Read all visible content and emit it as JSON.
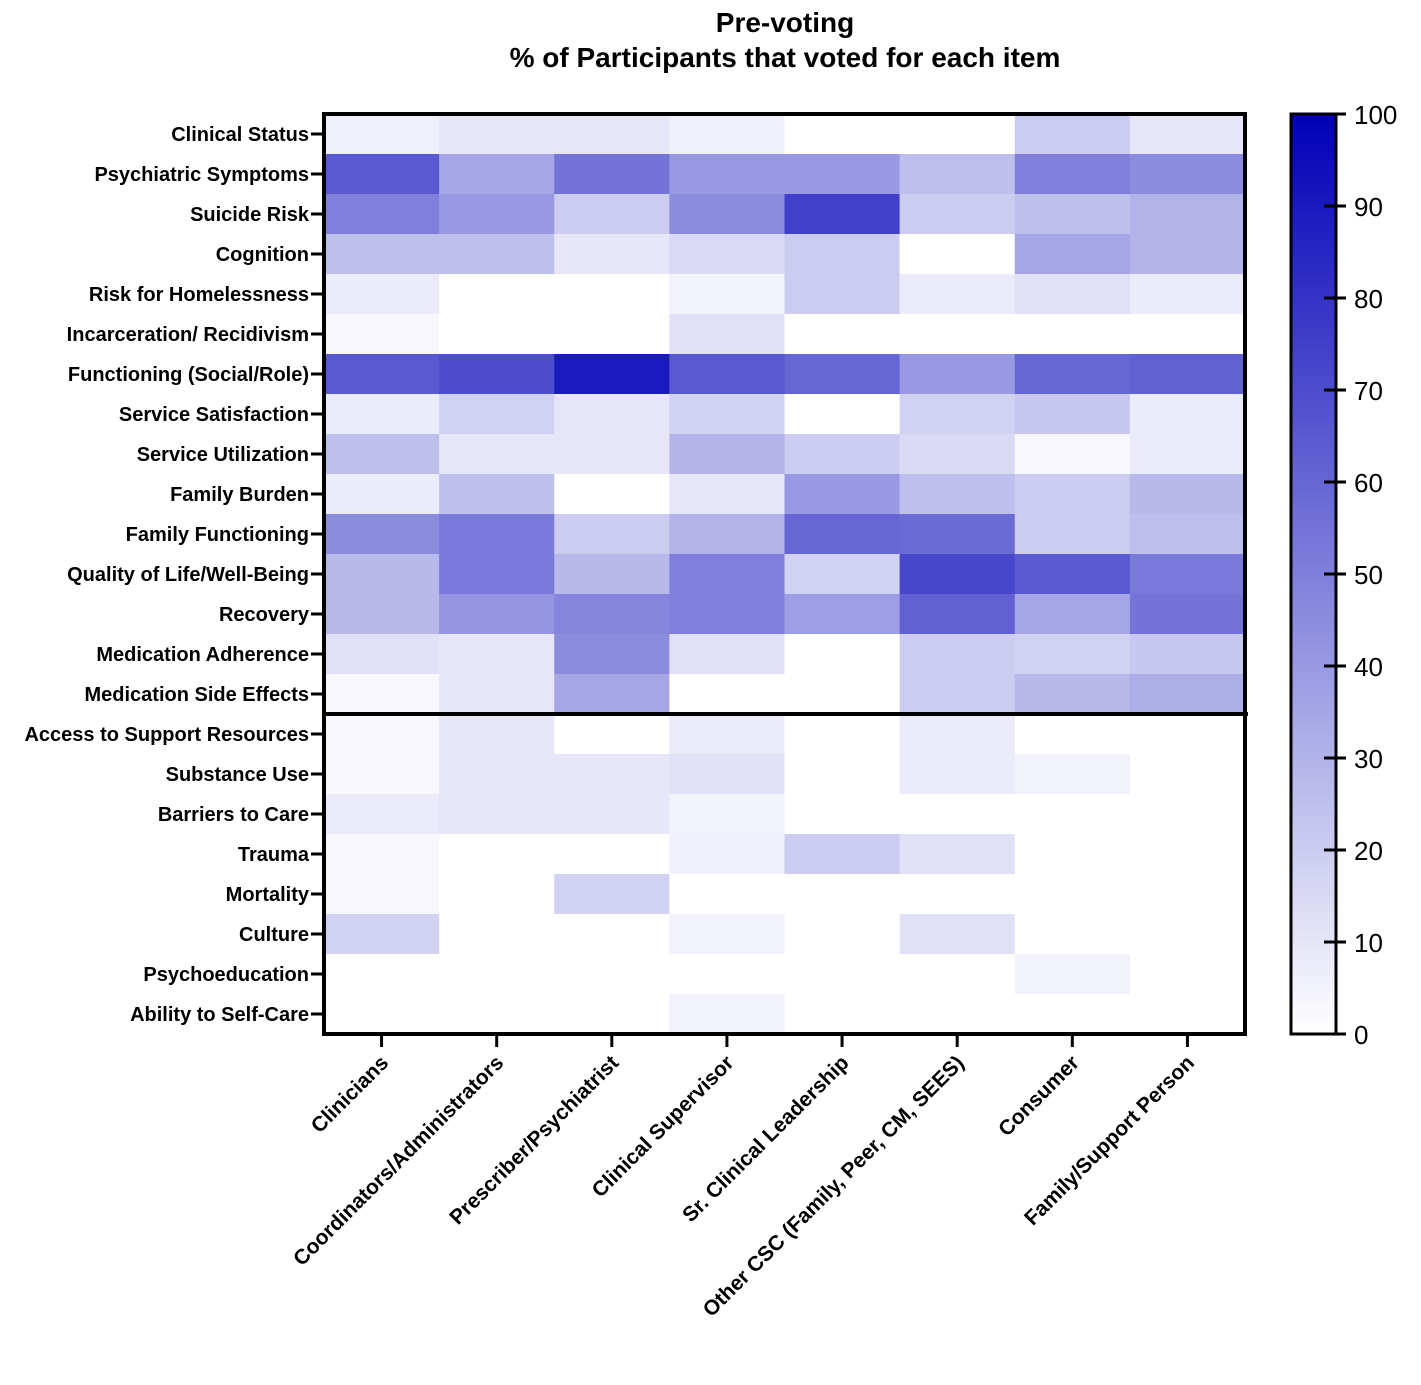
{
  "chart_data": {
    "type": "heatmap",
    "title": "Pre-voting",
    "subtitle": "% of Participants that voted for each item",
    "columns": [
      "Clinicians",
      "Coordinators/Administrators",
      "Prescriber/Psychiatrist",
      "Clinical Supervisor",
      "Sr. Clinical Leadership",
      "Other CSC (Family, Peer, CM, SEES)",
      "Consumer",
      "Family/Support Person"
    ],
    "rows": [
      "Clinical Status",
      "Psychiatric Symptoms",
      "Suicide Risk",
      "Cognition",
      "Risk for Homelessness",
      "Incarceration/ Recidivism",
      "Functioning (Social/Role)",
      "Service Satisfaction",
      "Service Utilization",
      "Family Burden",
      "Family Functioning",
      "Quality of Life/Well-Being",
      "Recovery",
      "Medication Adherence",
      "Medication Side Effects",
      "Access to Support Resources",
      "Substance Use",
      "Barriers to Care",
      "Trauma",
      "Mortality",
      "Culture",
      "Psychoeducation",
      "Ability to Self-Care"
    ],
    "values": [
      [
        6,
        10,
        10,
        6,
        0,
        0,
        20,
        10
      ],
      [
        65,
        35,
        55,
        40,
        40,
        25,
        50,
        45
      ],
      [
        50,
        40,
        20,
        45,
        75,
        20,
        25,
        30
      ],
      [
        25,
        25,
        10,
        15,
        20,
        0,
        35,
        30
      ],
      [
        8,
        0,
        0,
        5,
        20,
        8,
        12,
        8
      ],
      [
        3,
        0,
        0,
        12,
        0,
        0,
        0,
        0
      ],
      [
        65,
        70,
        90,
        65,
        60,
        40,
        60,
        62
      ],
      [
        8,
        18,
        10,
        18,
        0,
        18,
        22,
        8
      ],
      [
        25,
        10,
        10,
        30,
        20,
        15,
        3,
        8
      ],
      [
        8,
        25,
        0,
        10,
        40,
        25,
        20,
        28
      ],
      [
        45,
        52,
        20,
        30,
        60,
        58,
        20,
        25
      ],
      [
        28,
        52,
        28,
        50,
        18,
        72,
        65,
        52
      ],
      [
        28,
        42,
        48,
        50,
        38,
        62,
        35,
        55
      ],
      [
        12,
        10,
        45,
        12,
        0,
        20,
        18,
        22
      ],
      [
        3,
        10,
        35,
        0,
        0,
        20,
        28,
        32
      ],
      [
        3,
        10,
        0,
        8,
        0,
        8,
        0,
        0
      ],
      [
        3,
        10,
        10,
        12,
        0,
        8,
        5,
        0
      ],
      [
        8,
        10,
        10,
        5,
        0,
        0,
        0,
        0
      ],
      [
        3,
        0,
        0,
        6,
        20,
        12,
        0,
        0
      ],
      [
        3,
        0,
        18,
        0,
        0,
        0,
        0,
        0
      ],
      [
        18,
        0,
        0,
        5,
        0,
        12,
        0,
        0
      ],
      [
        0,
        0,
        0,
        0,
        0,
        0,
        5,
        0
      ],
      [
        0,
        0,
        0,
        5,
        0,
        0,
        0,
        0
      ]
    ],
    "divider_after_row": 15,
    "colorbar": {
      "min": 0,
      "max": 100,
      "ticks": [
        0,
        10,
        20,
        30,
        40,
        50,
        60,
        70,
        80,
        90,
        100
      ],
      "low_color": "#ffffff",
      "high_color": "#0000b8"
    }
  }
}
